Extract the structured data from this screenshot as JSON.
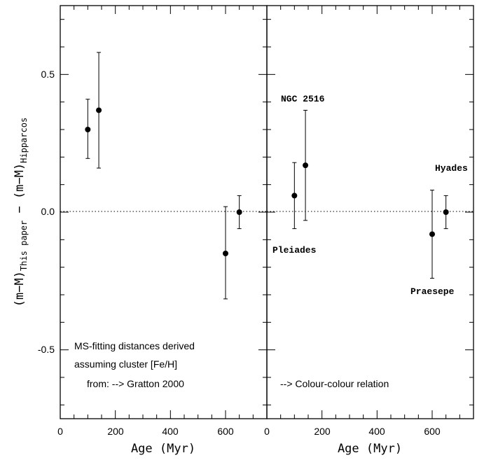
{
  "chart_data": [
    {
      "type": "scatter",
      "xlabel": "Age (Myr)",
      "ylabel_main": "(m−M)",
      "ylabel_sub1": "This paper",
      "ylabel_sep": " − ",
      "ylabel_sub2": "Hipparcos",
      "xlim": [
        0,
        750
      ],
      "ylim": [
        -0.75,
        0.75
      ],
      "xticks": [
        0,
        200,
        400,
        600
      ],
      "xtick_labels": [
        "0",
        "200",
        "400",
        "600"
      ],
      "yticks": [
        -0.5,
        0.0,
        0.5
      ],
      "ytick_labels": [
        "-0.5",
        "0.0",
        "0.5"
      ],
      "reference_line_y": 0.0,
      "points": [
        {
          "x": 100,
          "y": 0.3,
          "err_low": 0.105,
          "err_high": 0.11
        },
        {
          "x": 140,
          "y": 0.37,
          "err_low": 0.21,
          "err_high": 0.21
        },
        {
          "x": 600,
          "y": -0.15,
          "err_low": 0.165,
          "err_high": 0.17
        },
        {
          "x": 650,
          "y": 0.0,
          "err_low": 0.06,
          "err_high": 0.06
        }
      ],
      "annotations": [
        "MS-fitting distances derived",
        "assuming cluster [Fe/H]",
        "from: --> Gratton 2000"
      ]
    },
    {
      "type": "scatter",
      "xlabel": "Age (Myr)",
      "xlim": [
        0,
        750
      ],
      "ylim": [
        -0.75,
        0.75
      ],
      "xticks": [
        0,
        200,
        400,
        600
      ],
      "xtick_labels": [
        "0",
        "200",
        "400",
        "600"
      ],
      "reference_line_y": 0.0,
      "points": [
        {
          "x": 100,
          "y": 0.06,
          "err_low": 0.12,
          "err_high": 0.12
        },
        {
          "x": 140,
          "y": 0.17,
          "err_low": 0.2,
          "err_high": 0.2
        },
        {
          "x": 600,
          "y": -0.08,
          "err_low": 0.16,
          "err_high": 0.16
        },
        {
          "x": 650,
          "y": 0.0,
          "err_low": 0.06,
          "err_high": 0.06
        }
      ],
      "annotations": [
        "--> Colour-colour relation"
      ],
      "labels": [
        "NGC 2516",
        "Pleiades",
        "Praesepe",
        "Hyades"
      ]
    }
  ]
}
